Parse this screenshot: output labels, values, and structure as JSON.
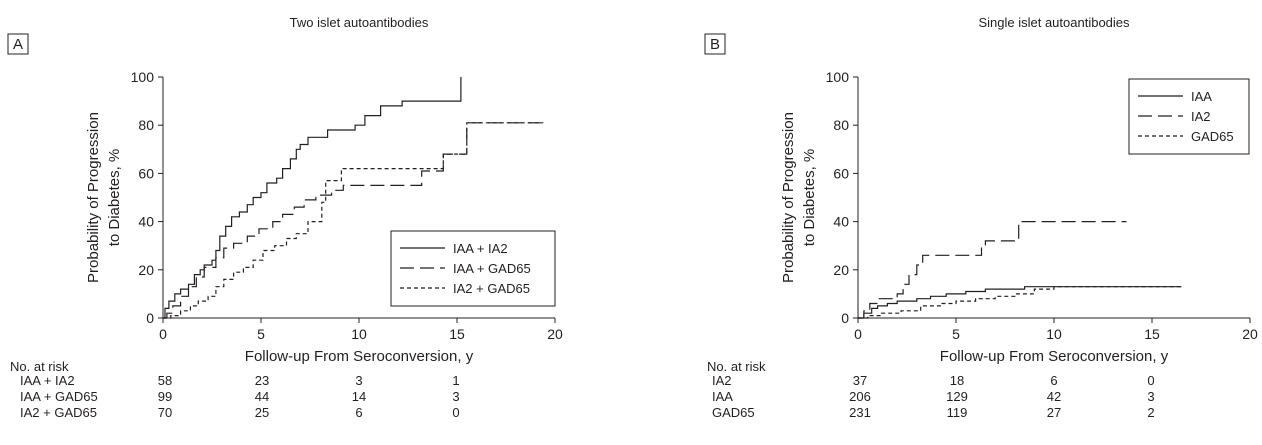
{
  "chart_data": [
    {
      "type": "line",
      "panel_label": "A",
      "title": "Two islet autoantibodies",
      "xlabel": "Follow-up From Seroconversion, y",
      "ylabel": [
        "Probability of Progression",
        "to Diabetes, %"
      ],
      "xlim": [
        0,
        20
      ],
      "ylim": [
        0,
        100
      ],
      "xticks": [
        "0",
        "5",
        "10",
        "15",
        "20"
      ],
      "yticks": [
        "0",
        "20",
        "40",
        "60",
        "80",
        "100"
      ],
      "grid": false,
      "legend_position": "lower-right",
      "series": [
        {
          "name": "IAA + IA2",
          "style": "solid",
          "points": [
            [
              0,
              0
            ],
            [
              0.1,
              4
            ],
            [
              0.3,
              7
            ],
            [
              0.6,
              10
            ],
            [
              0.9,
              12
            ],
            [
              1.3,
              14
            ],
            [
              1.6,
              18
            ],
            [
              1.9,
              20
            ],
            [
              2.1,
              22
            ],
            [
              2.5,
              24
            ],
            [
              2.7,
              28
            ],
            [
              2.9,
              34
            ],
            [
              3.2,
              38
            ],
            [
              3.5,
              42
            ],
            [
              3.9,
              44
            ],
            [
              4.3,
              47
            ],
            [
              4.6,
              50
            ],
            [
              5.0,
              52
            ],
            [
              5.3,
              56
            ],
            [
              5.8,
              58
            ],
            [
              6.1,
              62
            ],
            [
              6.5,
              66
            ],
            [
              6.8,
              70
            ],
            [
              7.0,
              72
            ],
            [
              7.4,
              75
            ],
            [
              8.4,
              78
            ],
            [
              9.0,
              78
            ],
            [
              9.8,
              80
            ],
            [
              10.3,
              84
            ],
            [
              11.1,
              88
            ],
            [
              12.2,
              90
            ],
            [
              15.2,
              90
            ],
            [
              15.2,
              100
            ]
          ]
        },
        {
          "name": "IAA + GAD65",
          "style": "long-dash",
          "points": [
            [
              0,
              0
            ],
            [
              0.2,
              2
            ],
            [
              0.5,
              5
            ],
            [
              0.9,
              9
            ],
            [
              1.3,
              13
            ],
            [
              1.7,
              17
            ],
            [
              2.1,
              21
            ],
            [
              2.7,
              25
            ],
            [
              3.1,
              29
            ],
            [
              3.6,
              31
            ],
            [
              4.3,
              34
            ],
            [
              4.9,
              37
            ],
            [
              5.6,
              40
            ],
            [
              6.1,
              43
            ],
            [
              6.7,
              46
            ],
            [
              7.2,
              49
            ],
            [
              7.8,
              51
            ],
            [
              8.6,
              53
            ],
            [
              9.2,
              55
            ],
            [
              10.6,
              55
            ],
            [
              13.2,
              55
            ],
            [
              13.2,
              61
            ],
            [
              14.3,
              61
            ],
            [
              14.3,
              68
            ],
            [
              15.5,
              68
            ],
            [
              15.5,
              81
            ],
            [
              19.4,
              81
            ]
          ]
        },
        {
          "name": "IA2 + GAD65",
          "style": "short-dash",
          "points": [
            [
              0,
              0
            ],
            [
              0.4,
              1
            ],
            [
              0.9,
              3
            ],
            [
              1.4,
              5
            ],
            [
              1.8,
              7
            ],
            [
              2.3,
              9
            ],
            [
              2.7,
              13
            ],
            [
              3.1,
              16
            ],
            [
              3.6,
              19
            ],
            [
              4.1,
              21
            ],
            [
              4.6,
              24
            ],
            [
              5.1,
              28
            ],
            [
              5.7,
              30
            ],
            [
              6.3,
              33
            ],
            [
              6.8,
              35
            ],
            [
              7.4,
              40
            ],
            [
              8.1,
              48
            ],
            [
              8.3,
              57
            ],
            [
              9.1,
              62
            ],
            [
              13.2,
              62
            ],
            [
              14.3,
              62
            ],
            [
              14.3,
              68
            ],
            [
              15.5,
              68
            ],
            [
              15.5,
              81
            ],
            [
              19.4,
              81
            ]
          ]
        }
      ],
      "risk_table": {
        "header": "No. at risk",
        "rows": [
          {
            "label": "IAA + IA2",
            "values": [
              "58",
              "23",
              "3",
              "1"
            ]
          },
          {
            "label": "IAA + GAD65",
            "values": [
              "99",
              "44",
              "14",
              "3"
            ]
          },
          {
            "label": "IA2 + GAD65",
            "values": [
              "70",
              "25",
              "6",
              "0"
            ]
          }
        ]
      }
    },
    {
      "type": "line",
      "panel_label": "B",
      "title": "Single islet autoantibodies",
      "xlabel": "Follow-up From Seroconversion, y",
      "ylabel": [
        "Probability of Progression",
        "to Diabetes, %"
      ],
      "xlim": [
        0,
        20
      ],
      "ylim": [
        0,
        100
      ],
      "xticks": [
        "0",
        "5",
        "10",
        "15",
        "20"
      ],
      "yticks": [
        "0",
        "20",
        "40",
        "60",
        "80",
        "100"
      ],
      "grid": false,
      "legend_position": "top-right",
      "series": [
        {
          "name": "IAA",
          "style": "solid",
          "points": [
            [
              0,
              0
            ],
            [
              0.3,
              2
            ],
            [
              0.7,
              4
            ],
            [
              1.0,
              5
            ],
            [
              1.5,
              6
            ],
            [
              2.0,
              7
            ],
            [
              3.0,
              8
            ],
            [
              3.7,
              9
            ],
            [
              4.5,
              10
            ],
            [
              5.5,
              11
            ],
            [
              6.5,
              12
            ],
            [
              8.5,
              13
            ],
            [
              10.5,
              13
            ],
            [
              16.5,
              13
            ]
          ]
        },
        {
          "name": "IA2",
          "style": "long-dash",
          "points": [
            [
              0,
              0
            ],
            [
              0.3,
              3
            ],
            [
              0.6,
              6
            ],
            [
              1.0,
              8
            ],
            [
              2.0,
              10
            ],
            [
              2.3,
              14
            ],
            [
              2.6,
              18
            ],
            [
              3.0,
              22
            ],
            [
              3.3,
              26
            ],
            [
              5.8,
              26
            ],
            [
              6.3,
              29
            ],
            [
              6.5,
              32
            ],
            [
              8.0,
              32
            ],
            [
              8.2,
              40
            ],
            [
              13.7,
              40
            ]
          ]
        },
        {
          "name": "GAD65",
          "style": "short-dash",
          "points": [
            [
              0,
              0
            ],
            [
              0.5,
              1
            ],
            [
              1.2,
              2
            ],
            [
              2.2,
              3
            ],
            [
              3.2,
              5
            ],
            [
              4.2,
              6
            ],
            [
              5.0,
              7
            ],
            [
              6.0,
              8
            ],
            [
              7.0,
              9
            ],
            [
              8.0,
              10
            ],
            [
              9.0,
              12
            ],
            [
              10.0,
              13
            ],
            [
              16.5,
              13
            ]
          ]
        }
      ],
      "risk_table": {
        "header": "No. at risk",
        "rows": [
          {
            "label": "IA2",
            "values": [
              "37",
              "18",
              "6",
              "0"
            ]
          },
          {
            "label": "IAA",
            "values": [
              "206",
              "129",
              "42",
              "3"
            ]
          },
          {
            "label": "GAD65",
            "values": [
              "231",
              "119",
              "27",
              "2"
            ]
          }
        ]
      }
    }
  ]
}
